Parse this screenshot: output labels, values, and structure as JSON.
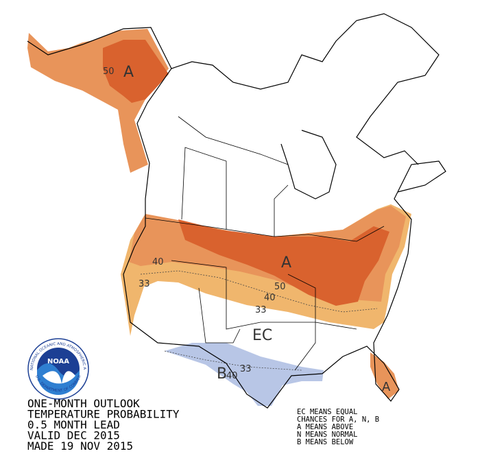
{
  "map_labels": {
    "alaska_category": "A",
    "alaska_contour": "50",
    "west_contour_40": "40",
    "west_contour_33": "33",
    "east_category": "A",
    "east_contour_50": "50",
    "east_contour_40": "40",
    "east_contour_33": "33",
    "central_category": "EC",
    "south_category": "B",
    "south_contour_40": "40",
    "south_contour_33": "33",
    "florida_category": "A"
  },
  "logo": {
    "name": "NOAA",
    "arc_top": "NATIONAL OCEANIC AND ATMOSPHERIC ADMINISTRATION",
    "arc_bottom": "U.S. DEPARTMENT OF COMMERCE"
  },
  "title_block": {
    "lines": [
      "ONE-MONTH OUTLOOK",
      "TEMPERATURE PROBABILITY",
      "0.5 MONTH LEAD",
      "VALID DEC 2015",
      "MADE 19 NOV 2015"
    ]
  },
  "legend": {
    "lines": [
      "EC MEANS EQUAL",
      "CHANCES FOR A, N, B",
      "A MEANS ABOVE",
      "N MEANS NORMAL",
      "B MEANS BELOW"
    ]
  }
}
